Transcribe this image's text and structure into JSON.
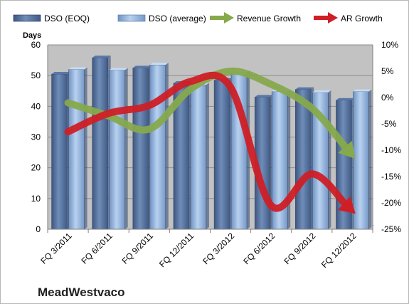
{
  "company": "MeadWestvaco",
  "chart_data": {
    "type": "bar",
    "categories": [
      "FQ 3/2011",
      "FQ 6/2011",
      "FQ 9/2011",
      "FQ 12/2011",
      "FQ 3/2012",
      "FQ 6/2012",
      "FQ 9/2012",
      "FQ 12/2012"
    ],
    "ylabel": "Days",
    "ylim": [
      0,
      60
    ],
    "yticks": [
      0,
      10,
      20,
      30,
      40,
      50,
      60
    ],
    "y2lim": [
      -25,
      10
    ],
    "y2ticks": [
      "10%",
      "5%",
      "0%",
      "-5%",
      "-10%",
      "-15%",
      "-20%",
      "-25%"
    ],
    "y2values": [
      10,
      5,
      0,
      -5,
      -10,
      -15,
      -20,
      -25
    ],
    "legend_position": "top",
    "grid": true,
    "series": [
      {
        "name": "DSO (EOQ)",
        "type": "bar",
        "axis": "left",
        "values": [
          50.5,
          55.8,
          52.5,
          47.5,
          48.5,
          43.0,
          45.5,
          42.0
        ]
      },
      {
        "name": "DSO (average)",
        "type": "bar",
        "axis": "left",
        "values": [
          52.0,
          51.8,
          53.5,
          47.0,
          51.0,
          44.8,
          44.5,
          44.8
        ]
      },
      {
        "name": "Revenue Growth",
        "type": "line",
        "axis": "right",
        "values": [
          -1.0,
          -3.5,
          -6.0,
          1.5,
          5.0,
          2.5,
          -2.0,
          -11.0
        ]
      },
      {
        "name": "AR Growth",
        "type": "line",
        "axis": "right",
        "values": [
          -6.5,
          -3.0,
          -1.5,
          3.0,
          2.0,
          -20.5,
          -14.5,
          -21.5
        ]
      }
    ],
    "colors": {
      "eoq_bar": "#4f6d96",
      "avg_bar": "#8fb1dc",
      "revenue_line": "#86a94c",
      "ar_line": "#cf1f26",
      "plot_bg": "#c2c2c2"
    }
  }
}
